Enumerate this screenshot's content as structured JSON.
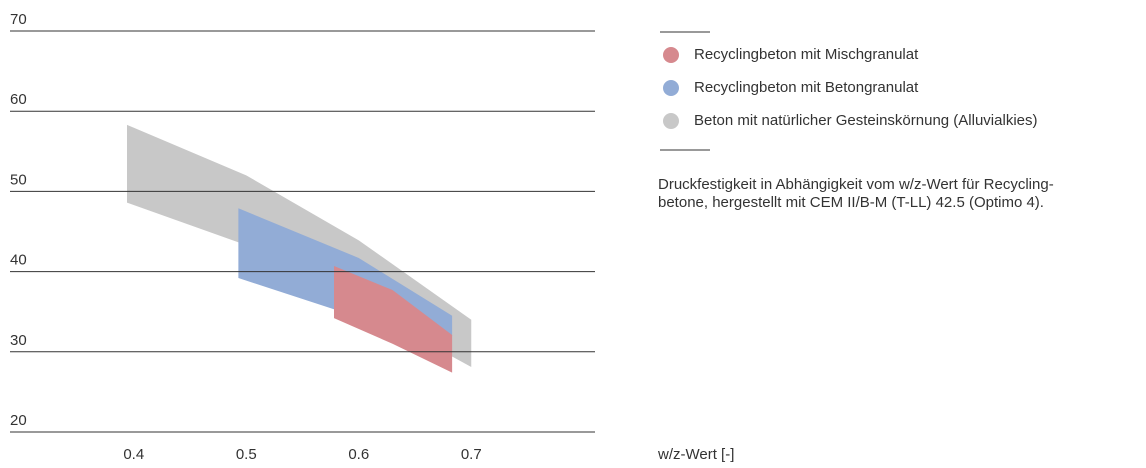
{
  "chart_data": {
    "type": "band",
    "xlabel": "w/z-Wert [-]",
    "note": [
      "Druckfestigkeit in Abhängigkeit vom w/z-Wert für Recycling-",
      "betone, hergestellt mit CEM II/B-M (T-LL) 42.5 (Optimo 4)."
    ],
    "xlim": [
      0.29,
      0.81
    ],
    "xticks": [
      0.4,
      0.5,
      0.6,
      0.7
    ],
    "ylim": [
      20,
      70
    ],
    "yticks": [
      20,
      30,
      40,
      50,
      60,
      70
    ],
    "grid": true,
    "legend": "right",
    "series": [
      {
        "name": "Beton mit natürlicher Gesteinskörnung (Alluvialkies)",
        "color": "#c8c8c8",
        "x": [
          0.394,
          0.5,
          0.6,
          0.7
        ],
        "upper": [
          58.3,
          52.0,
          43.9,
          34.0
        ],
        "lower": [
          48.6,
          43.3,
          35.8,
          28.1
        ]
      },
      {
        "name": "Recyclingbeton mit Betongranulat",
        "color": "#92acd6",
        "x": [
          0.493,
          0.6,
          0.683
        ],
        "upper": [
          47.9,
          41.7,
          34.5
        ],
        "lower": [
          39.2,
          34.3,
          32.0
        ]
      },
      {
        "name": "Recyclingbeton mit Mischgranulat",
        "color": "#d6898e",
        "x": [
          0.578,
          0.63,
          0.683
        ],
        "upper": [
          40.7,
          37.7,
          32.1
        ],
        "lower": [
          34.2,
          31.0,
          27.4
        ]
      }
    ]
  }
}
